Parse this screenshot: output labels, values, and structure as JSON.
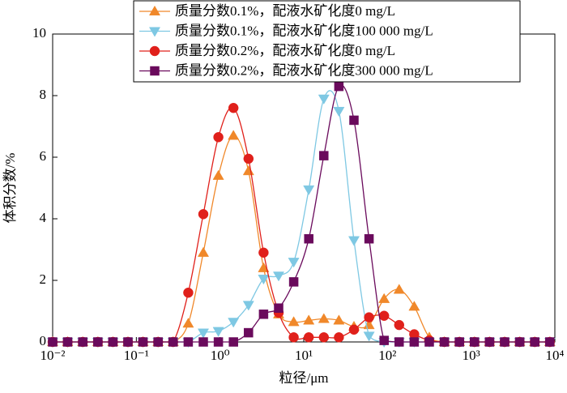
{
  "chart_data": {
    "type": "line",
    "log_x": true,
    "x_label": "粒径/μm",
    "y_label": "体积分数/%",
    "x": [
      0.01,
      0.0151,
      0.0229,
      0.0347,
      0.0525,
      0.0794,
      0.12,
      0.182,
      0.275,
      0.417,
      0.631,
      0.955,
      1.445,
      2.188,
      3.311,
      5.012,
      7.586,
      11.48,
      17.38,
      26.3,
      39.81,
      60.26,
      91.2,
      138,
      208.9,
      316.2,
      478.6,
      724.4,
      1096,
      1660,
      2512,
      3802,
      5754,
      8710
    ],
    "series": [
      {
        "name": "质量分数0.1%，配液水矿化度0 mg/L",
        "color": "#f0882a",
        "marker": "triangle-up",
        "values": [
          0,
          0,
          0,
          0,
          0,
          0,
          0,
          0,
          0,
          0.6,
          2.9,
          5.4,
          6.7,
          5.55,
          2.4,
          0.9,
          0.65,
          0.7,
          0.75,
          0.7,
          0.5,
          0.55,
          1.4,
          1.7,
          1.15,
          0.15,
          0,
          0,
          0,
          0,
          0,
          0,
          0,
          0
        ]
      },
      {
        "name": "质量分数0.1%，配液水矿化度100 000 mg/L",
        "color": "#7ec8e3",
        "marker": "triangle-down",
        "values": [
          0,
          0,
          0,
          0,
          0,
          0,
          0,
          0,
          0,
          0,
          0.3,
          0.35,
          0.65,
          1.2,
          2.05,
          2.15,
          2.6,
          4.95,
          7.9,
          7.5,
          3.3,
          0.2,
          0,
          0,
          0,
          0,
          0,
          0,
          0,
          0,
          0,
          0,
          0,
          0
        ]
      },
      {
        "name": "质量分数0.2%，配液水矿化度0 mg/L",
        "color": "#e0201b",
        "marker": "circle",
        "values": [
          0,
          0,
          0,
          0,
          0,
          0,
          0,
          0,
          0,
          1.6,
          4.15,
          6.65,
          7.6,
          5.95,
          2.9,
          0.95,
          0.15,
          0.15,
          0.15,
          0.15,
          0.4,
          0.8,
          0.85,
          0.55,
          0.25,
          0.05,
          0,
          0,
          0,
          0,
          0,
          0,
          0,
          0
        ]
      },
      {
        "name": "质量分数0.2%，配液水矿化度300 000 mg/L",
        "color": "#6a0a5c",
        "marker": "square",
        "values": [
          0,
          0,
          0,
          0,
          0,
          0,
          0,
          0,
          0,
          0,
          0,
          0,
          0,
          0.3,
          0.9,
          1.1,
          1.95,
          3.35,
          6.05,
          8.3,
          7.2,
          3.35,
          0.05,
          0,
          0,
          0,
          0,
          0,
          0,
          0,
          0,
          0,
          0,
          0
        ]
      }
    ],
    "xlim": [
      0.01,
      10000
    ],
    "xticks": [
      {
        "value": 0.01,
        "label": "10⁻²"
      },
      {
        "value": 0.1,
        "label": "10⁻¹"
      },
      {
        "value": 1,
        "label": "10⁰"
      },
      {
        "value": 10,
        "label": "10¹"
      },
      {
        "value": 100,
        "label": "10²"
      },
      {
        "value": 1000,
        "label": "10³"
      },
      {
        "value": 10000,
        "label": "10⁴"
      }
    ],
    "ylim": [
      0,
      10
    ],
    "yticks": [
      0,
      2,
      4,
      6,
      8,
      10
    ]
  }
}
